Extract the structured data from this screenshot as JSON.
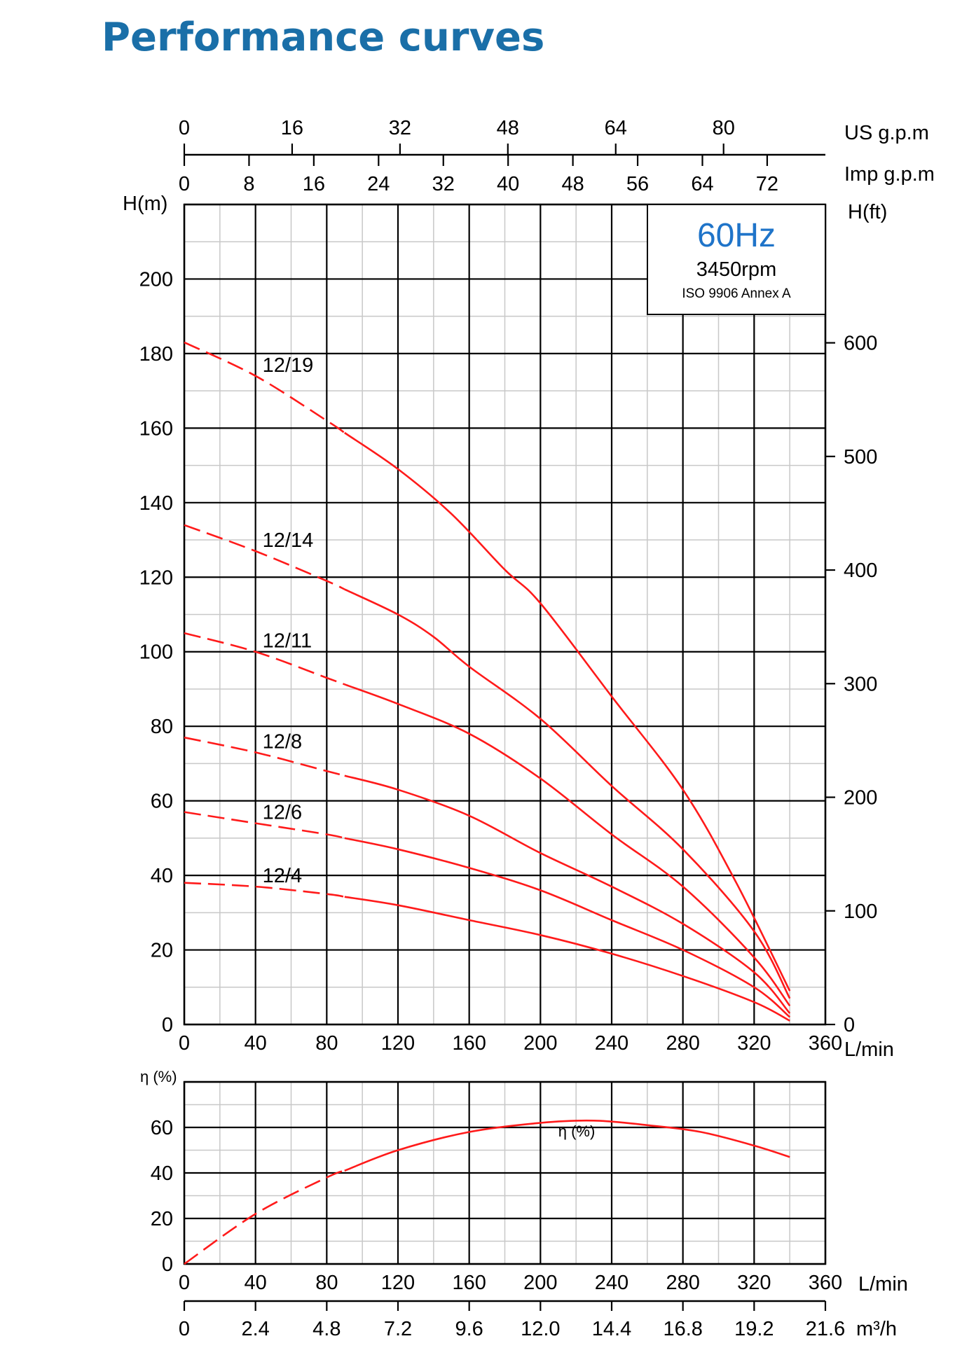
{
  "title": "Performance curves",
  "colors": {
    "title": "#1a6fa8",
    "curve": "#ff1a1a",
    "hz": "#1f74c9",
    "grid_major": "#000000",
    "grid_minor": "#c8c8c8"
  },
  "info_box": {
    "frequency": "60Hz",
    "speed": "3450rpm",
    "standard": "ISO 9906 Annex A"
  },
  "axes": {
    "flow_lmin": {
      "label": "L/min",
      "ticks": [
        "0",
        "40",
        "80",
        "120",
        "160",
        "200",
        "240",
        "280",
        "320",
        "360"
      ],
      "min": 0,
      "max": 360
    },
    "us_gpm": {
      "label": "US g.p.m",
      "ticks": [
        "0",
        "16",
        "32",
        "48",
        "64",
        "80"
      ]
    },
    "imp_gpm": {
      "label": "Imp g.p.m",
      "ticks": [
        "0",
        "8",
        "16",
        "24",
        "32",
        "40",
        "48",
        "56",
        "64",
        "72"
      ]
    },
    "head_m": {
      "label": "H(m)",
      "ticks": [
        "0",
        "20",
        "40",
        "60",
        "80",
        "100",
        "120",
        "140",
        "160",
        "180",
        "200"
      ],
      "min": 0,
      "max": 220
    },
    "head_ft": {
      "label": "H(ft)",
      "ticks": [
        "0",
        "100",
        "200",
        "300",
        "400",
        "500",
        "600"
      ]
    },
    "eta": {
      "label": "η (%)",
      "ticks": [
        "0",
        "20",
        "40",
        "60"
      ],
      "min": 0,
      "max": 80
    },
    "flow_m3h": {
      "label": "m³/h",
      "ticks": [
        "0",
        "2.4",
        "4.8",
        "7.2",
        "9.6",
        "12.0",
        "14.4",
        "16.8",
        "19.2",
        "21.6"
      ]
    }
  },
  "chart_data": [
    {
      "type": "line",
      "xlabel": "L/min",
      "ylabel": "H(m)",
      "xlim": [
        0,
        360
      ],
      "ylim": [
        0,
        220
      ],
      "dashed_until_x": 90,
      "series": [
        {
          "name": "12/19",
          "x": [
            0,
            40,
            80,
            120,
            150,
            180,
            200,
            240,
            280,
            310,
            340
          ],
          "y": [
            183,
            174,
            162,
            149,
            137,
            122,
            113,
            88,
            63,
            38,
            9
          ]
        },
        {
          "name": "12/14",
          "x": [
            0,
            40,
            80,
            120,
            140,
            160,
            200,
            240,
            280,
            320,
            340
          ],
          "y": [
            134,
            127,
            119,
            110,
            104,
            96,
            82,
            64,
            47,
            25,
            7
          ]
        },
        {
          "name": "12/11",
          "x": [
            0,
            40,
            80,
            120,
            160,
            200,
            240,
            280,
            320,
            340
          ],
          "y": [
            105,
            100,
            93,
            86,
            78,
            66,
            51,
            37,
            18,
            5
          ]
        },
        {
          "name": "12/8",
          "x": [
            0,
            40,
            80,
            120,
            160,
            200,
            240,
            280,
            320,
            340
          ],
          "y": [
            77,
            73,
            68,
            63,
            56,
            46,
            37,
            27,
            14,
            3
          ]
        },
        {
          "name": "12/6",
          "x": [
            0,
            40,
            80,
            120,
            160,
            200,
            240,
            280,
            320,
            340
          ],
          "y": [
            57,
            54,
            51,
            47,
            42,
            36,
            28,
            20,
            10,
            2
          ]
        },
        {
          "name": "12/4",
          "x": [
            0,
            40,
            80,
            120,
            160,
            200,
            240,
            280,
            320,
            340
          ],
          "y": [
            38,
            37,
            35,
            32,
            28,
            24,
            19,
            13,
            6,
            1
          ]
        }
      ]
    },
    {
      "type": "line",
      "xlabel": "L/min",
      "ylabel": "η (%)",
      "xlim": [
        0,
        360
      ],
      "ylim": [
        0,
        80
      ],
      "dashed_until_x": 90,
      "series": [
        {
          "name": "η (%)",
          "x": [
            0,
            40,
            80,
            120,
            160,
            200,
            230,
            260,
            290,
            320,
            340
          ],
          "y": [
            0,
            22,
            38,
            50,
            58,
            62,
            63,
            61,
            58,
            52,
            47
          ]
        }
      ]
    }
  ]
}
